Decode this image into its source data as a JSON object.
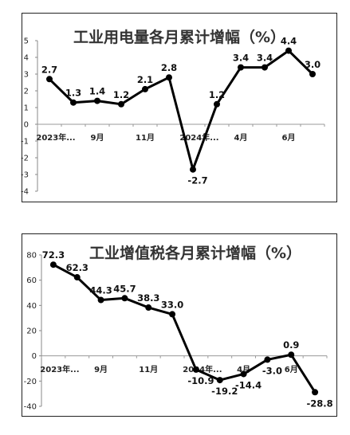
{
  "chart_data": [
    {
      "type": "line",
      "title": "工业用电量各月累计增幅（%）",
      "categories": [
        "2023年...",
        "",
        "9月",
        "",
        "11月",
        "",
        "2024年...",
        "",
        "4月",
        "",
        "6月",
        ""
      ],
      "values": [
        2.7,
        1.3,
        1.4,
        1.2,
        2.1,
        2.8,
        -2.7,
        1.2,
        3.4,
        3.4,
        4.4,
        3.0
      ],
      "data_labels": [
        "2.7",
        "1.3",
        "1.4",
        "1.2",
        "2.1",
        "2.8",
        "-2.7",
        "1.2",
        "3.4",
        "3.4",
        "4.4",
        "3.0"
      ],
      "ylim": [
        -4,
        5
      ],
      "yticks": [
        "-4",
        "-3",
        "-2",
        "-1",
        "0",
        "1",
        "2",
        "3",
        "4",
        "5"
      ],
      "grid": false
    },
    {
      "type": "line",
      "title": "工业增值税各月累计增幅（%）",
      "categories": [
        "2023年...",
        "",
        "9月",
        "",
        "11月",
        "",
        "2024年...",
        "",
        "4月",
        "",
        "6月",
        ""
      ],
      "values": [
        72.3,
        62.3,
        44.3,
        45.7,
        38.3,
        33.0,
        -10.9,
        -19.2,
        -14.4,
        -3.0,
        0.9,
        -28.8
      ],
      "data_labels": [
        "72.3",
        "62.3",
        "44.3",
        "45.7",
        "38.3",
        "33.0",
        "-10.9",
        "-19.2",
        "-14.4",
        "-3.0",
        "0.9",
        "-28.8"
      ],
      "ylim": [
        -40,
        80
      ],
      "yticks": [
        "-40",
        "-20",
        "0",
        "20",
        "40",
        "60",
        "80"
      ],
      "grid": false
    }
  ]
}
